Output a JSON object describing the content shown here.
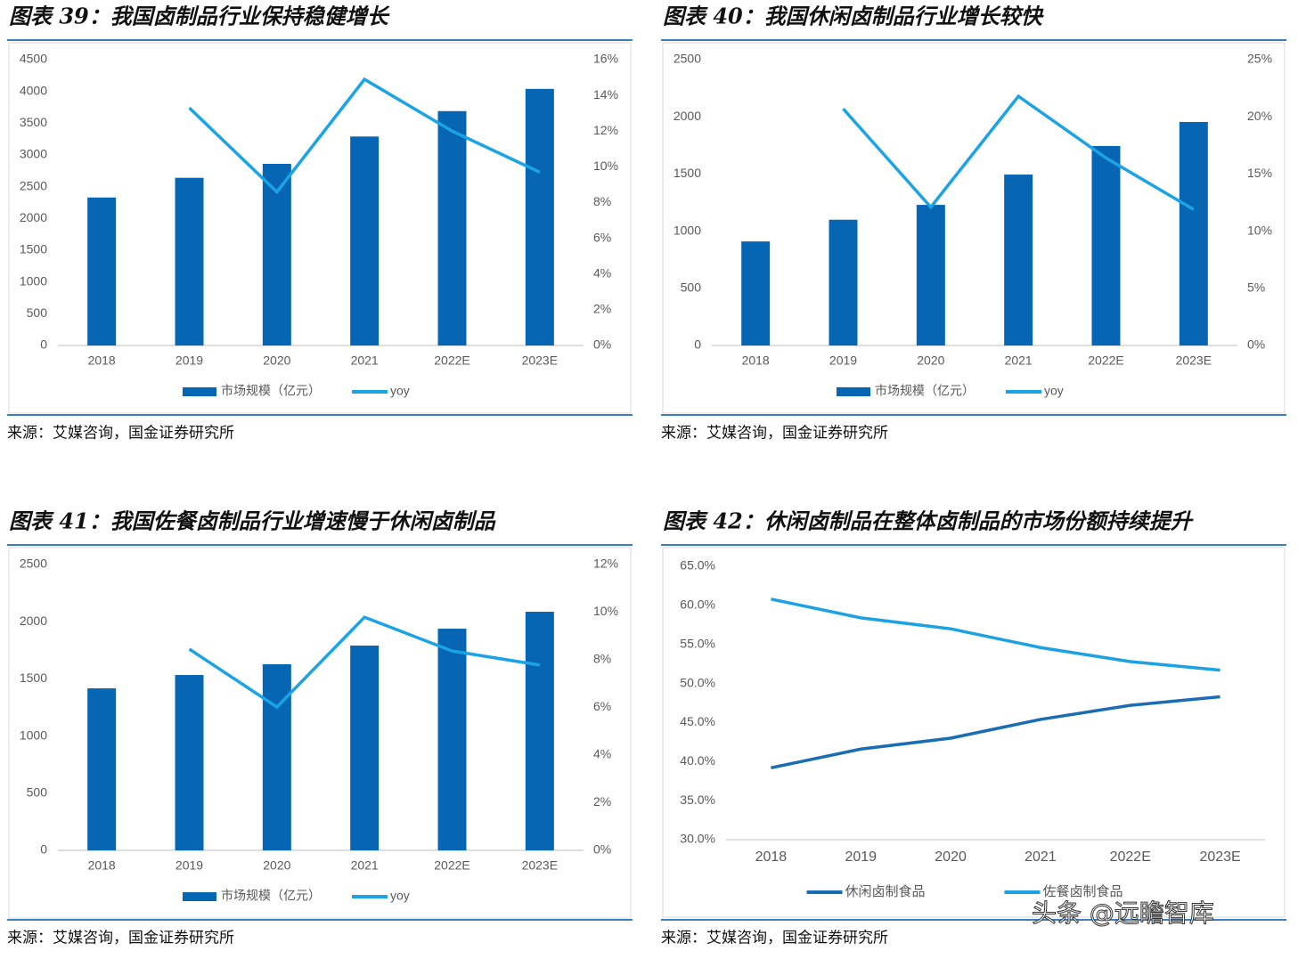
{
  "chart_data": [
    {
      "type": "bar",
      "title": "图表 39：我国卤制品行业保持稳健增长",
      "source": "来源：艾媒咨询，国金证券研究所",
      "categories": [
        "2018",
        "2019",
        "2020",
        "2021",
        "2022E",
        "2023E"
      ],
      "series": [
        {
          "name": "市场规模（亿元）",
          "color": "#0766b4",
          "type": "bar",
          "values": [
            2330,
            2640,
            2860,
            3290,
            3690,
            4040
          ]
        },
        {
          "name": "yoy",
          "color": "#1ba3e6",
          "type": "line",
          "axis": "y2",
          "values": [
            null,
            13.3,
            8.6,
            14.9,
            12.0,
            9.7
          ]
        }
      ],
      "ylim": [
        0,
        4500
      ],
      "yticks": [
        0,
        500,
        1000,
        1500,
        2000,
        2500,
        3000,
        3500,
        4000,
        4500
      ],
      "y2lim": [
        0,
        16
      ],
      "y2ticks": [
        {
          "value": 0,
          "label": "0%"
        },
        {
          "value": 2,
          "label": "2%"
        },
        {
          "value": 4,
          "label": "4%"
        },
        {
          "value": 6,
          "label": "6%"
        },
        {
          "value": 8,
          "label": "8%"
        },
        {
          "value": 10,
          "label": "10%"
        },
        {
          "value": 12,
          "label": "12%"
        },
        {
          "value": 14,
          "label": "14%"
        },
        {
          "value": 16,
          "label": "16%"
        }
      ]
    },
    {
      "type": "bar",
      "title": "图表 40：我国休闲卤制品行业增长较快",
      "source": "来源：艾媒咨询，国金证券研究所",
      "categories": [
        "2018",
        "2019",
        "2020",
        "2021",
        "2022E",
        "2023E"
      ],
      "series": [
        {
          "name": "市场规模（亿元）",
          "color": "#0766b4",
          "type": "bar",
          "values": [
            910,
            1100,
            1230,
            1495,
            1745,
            1955
          ]
        },
        {
          "name": "yoy",
          "color": "#1ba3e6",
          "type": "line",
          "axis": "y2",
          "values": [
            null,
            20.7,
            12.1,
            21.8,
            16.4,
            11.9
          ]
        }
      ],
      "ylim": [
        0,
        2500
      ],
      "yticks": [
        0,
        500,
        1000,
        1500,
        2000,
        2500
      ],
      "y2lim": [
        0,
        25
      ],
      "y2ticks": [
        {
          "value": 0,
          "label": "0%"
        },
        {
          "value": 5,
          "label": "5%"
        },
        {
          "value": 10,
          "label": "10%"
        },
        {
          "value": 15,
          "label": "15%"
        },
        {
          "value": 20,
          "label": "20%"
        },
        {
          "value": 25,
          "label": "25%"
        }
      ]
    },
    {
      "type": "bar",
      "title": "图表 41：我国佐餐卤制品行业增速慢于休闲卤制品",
      "source": "来源：艾媒咨询，国金证券研究所",
      "categories": [
        "2018",
        "2019",
        "2020",
        "2021",
        "2022E",
        "2023E"
      ],
      "series": [
        {
          "name": "市场规模（亿元）",
          "color": "#0766b4",
          "type": "bar",
          "values": [
            1417,
            1534,
            1628,
            1791,
            1939,
            2087
          ]
        },
        {
          "name": "yoy",
          "color": "#1ba3e6",
          "type": "line",
          "axis": "y2",
          "values": [
            null,
            8.45,
            6.02,
            9.79,
            8.37,
            7.78
          ]
        }
      ],
      "ylim": [
        0,
        2500
      ],
      "yticks": [
        0,
        500,
        1000,
        1500,
        2000,
        2500
      ],
      "y2lim": [
        0,
        12
      ],
      "y2ticks": [
        {
          "value": 0,
          "label": "0%"
        },
        {
          "value": 2,
          "label": "2%"
        },
        {
          "value": 4,
          "label": "4%"
        },
        {
          "value": 6,
          "label": "6%"
        },
        {
          "value": 8,
          "label": "8%"
        },
        {
          "value": 10,
          "label": "10%"
        },
        {
          "value": 12,
          "label": "12%"
        }
      ]
    },
    {
      "type": "line",
      "title": "图表 42：休闲卤制品在整体卤制品的市场份额持续提升",
      "source": "来源：艾媒咨询，国金证券研究所",
      "categories": [
        "2018",
        "2019",
        "2020",
        "2021",
        "2022E",
        "2023E"
      ],
      "series": [
        {
          "name": "休闲卤制食品",
          "color": "#1a6db3",
          "values": [
            39.2,
            41.6,
            43.0,
            45.4,
            47.2,
            48.3
          ]
        },
        {
          "name": "佐餐卤制食品",
          "color": "#1ca2e2",
          "values": [
            60.8,
            58.4,
            57.0,
            54.6,
            52.8,
            51.7
          ]
        }
      ],
      "ylim": [
        30,
        65
      ],
      "yticks": [
        {
          "value": 30,
          "label": "30.0%"
        },
        {
          "value": 35,
          "label": "35.0%"
        },
        {
          "value": 40,
          "label": "40.0%"
        },
        {
          "value": 45,
          "label": "45.0%"
        },
        {
          "value": 50,
          "label": "50.0%"
        },
        {
          "value": 55,
          "label": "55.0%"
        },
        {
          "value": 60,
          "label": "60.0%"
        },
        {
          "value": 65,
          "label": "65.0%"
        }
      ]
    }
  ],
  "watermark": "头条 @远瞻智库"
}
